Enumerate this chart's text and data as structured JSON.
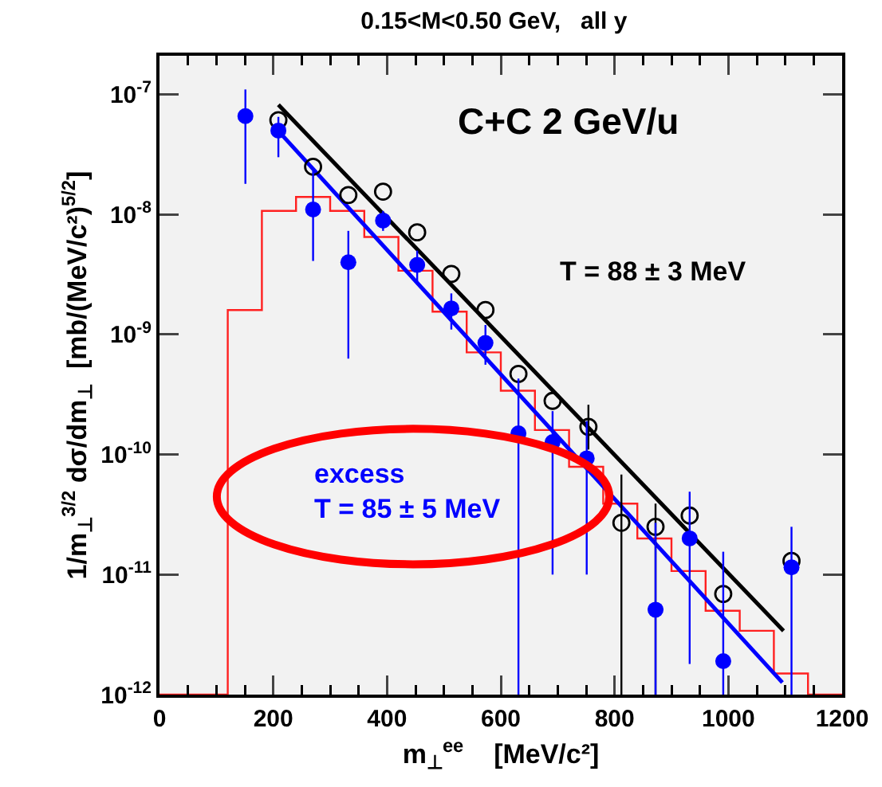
{
  "chart_data": {
    "type": "scatter",
    "title": "0.15<M<0.50 GeV,   all y",
    "xlabel": "m$_{⊥}$$^{ee}$    [MeV/c²]",
    "ylabel": "1/m$_{⊥}$$^{3/2}$ dσ/dm$_{⊥}$  [mb/(MeV/c²)$^{5/2}$]",
    "annotations": [
      "C+C 2 GeV/u",
      "T = 88 ± 3 MeV",
      "excess\nT = 85 ± 5 MeV"
    ],
    "xlim": [
      0,
      1200
    ],
    "xticks": [
      0,
      200,
      400,
      600,
      800,
      1000,
      1200
    ],
    "ylim": [
      1e-12,
      2.1e-07
    ],
    "yticks": [
      {
        "value": 1e-12,
        "label": "10$^{-12}$"
      },
      {
        "value": 1e-11,
        "label": "10$^{-11}$"
      },
      {
        "value": 1e-10,
        "label": "10$^{-10}$"
      },
      {
        "value": 1e-09,
        "label": "10$^{-9}$"
      },
      {
        "value": 1e-08,
        "label": "10$^{-8}$"
      },
      {
        "value": 1e-07,
        "label": "10$^{-7}$"
      }
    ],
    "log": "y",
    "marker": "circle",
    "series": [
      {
        "type": "histogram",
        "color": "#ff2020",
        "bins": [
          0,
          60,
          120,
          180,
          240,
          300,
          360,
          420,
          480,
          540,
          600,
          660,
          720,
          780,
          840,
          900,
          960,
          1020,
          1080,
          1140,
          1200
        ],
        "values": [
          1e-12,
          1e-12,
          1.6e-09,
          1.07e-08,
          1.4e-08,
          1.07e-08,
          6.5e-09,
          3.4e-09,
          1.55e-09,
          7.1e-10,
          3.4e-10,
          1.6e-10,
          7.9e-11,
          3.9e-11,
          2e-11,
          1.07e-11,
          5e-12,
          3.4e-12,
          1.5e-12,
          1e-12
        ]
      },
      {
        "type": "line",
        "marker": "none",
        "color": "#000000",
        "x": [
          209,
          1097
        ],
        "values": [
          8.2e-08,
          3.4e-12
        ]
      },
      {
        "type": "line",
        "marker": "none",
        "color": "#0000ff",
        "x": [
          205,
          1095
        ],
        "values": [
          5.2e-08,
          1.26e-12
        ]
      },
      {
        "color": "#000000",
        "marker": "circle-open",
        "x": [
          209,
          270,
          332,
          393,
          453,
          513,
          573,
          631,
          691,
          754,
          812,
          872,
          932,
          991,
          1111
        ],
        "values": [
          6.1e-08,
          2.5e-08,
          1.45e-08,
          1.55e-08,
          7.1e-09,
          3.2e-09,
          1.6e-09,
          4.7e-10,
          2.8e-10,
          1.7e-10,
          2.7e-11,
          2.5e-11,
          3.1e-11,
          6.9e-12,
          1.3e-11
        ],
        "errors": [
          null,
          null,
          null,
          null,
          null,
          null,
          null,
          null,
          null,
          [
            1.1e-10,
            2.6e-10
          ],
          [
            1e-12,
            6.8e-11
          ],
          [
            1e-12,
            3.9e-11
          ],
          null,
          null,
          null
        ]
      },
      {
        "color": "#0000ff",
        "x": [
          151,
          209,
          270,
          332,
          393,
          453,
          513,
          573,
          631,
          691,
          751,
          872,
          932,
          991,
          1111
        ],
        "values": [
          6.6e-08,
          5e-08,
          1.1e-08,
          4e-09,
          8.9e-09,
          3.8e-09,
          1.65e-09,
          8.5e-10,
          1.5e-10,
          1.27e-10,
          9.3e-11,
          5.1e-12,
          2e-11,
          1.9e-12,
          1.15e-11
        ],
        "errors": [
          [
            1.8e-08,
            1.1e-07
          ],
          [
            3e-08,
            6.5e-08
          ],
          [
            4.1e-09,
            2.3e-08
          ],
          [
            6.3e-10,
            7.3e-09
          ],
          [
            7.3e-09,
            1.07e-08
          ],
          [
            2.6e-09,
            5e-09
          ],
          [
            1.1e-09,
            2.2e-09
          ],
          [
            5.6e-10,
            1.2e-09
          ],
          [
            1e-12,
            4.3e-10
          ],
          [
            1e-11,
            2.3e-10
          ],
          [
            1e-11,
            1.9e-10
          ],
          [
            1e-12,
            2.7e-11
          ],
          [
            1.8e-12,
            4.9e-11
          ],
          [
            1e-12,
            1.55e-11
          ],
          [
            1e-12,
            2.5e-11
          ]
        ]
      }
    ]
  }
}
